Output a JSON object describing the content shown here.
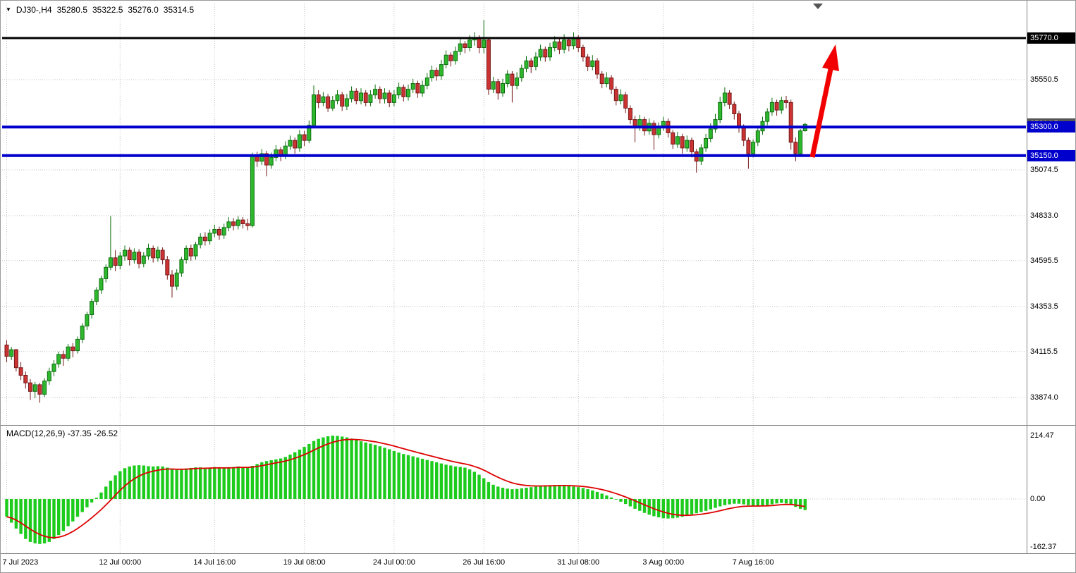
{
  "header": {
    "symbol_period": "DJ30-,H4",
    "open": "35280.5",
    "high": "35322.5",
    "low": "35276.0",
    "close": "35314.5"
  },
  "macd_panel": {
    "label": "MACD(12,26,9) -37.35 -26.52"
  },
  "icons": {
    "one_click_arrow": "▼",
    "chart_shift_marker": "triangle-down"
  },
  "colors": {
    "background": "#ffffff",
    "bull": "#2eb82e",
    "bull_edge": "#0f6e0f",
    "bear": "#cc3333",
    "bear_edge": "#761a1a",
    "grid": "#c4c4c4",
    "level_black": "#000000",
    "level_blue": "#0000cc",
    "macd_hist": "#1dcb1d",
    "macd_signal": "#dd0000",
    "arrow": "#f20000",
    "separator": "#808080",
    "badge_text": "#ffffff",
    "current_tag": "#555555"
  },
  "price_axis": {
    "current_price": {
      "label": "35314.5",
      "value": 35314.5,
      "color": "#555555"
    }
  },
  "chart_data": {
    "type": "candlestick",
    "symbol": "DJ30-",
    "timeframe": "H4",
    "title": "DJ30-,H4 35280.5 35322.5 35276.0 35314.5",
    "ylim": [
      33800,
      35900
    ],
    "x_axis": {
      "ticks": [
        {
          "label": "7 Jul 2023",
          "bar": 0
        },
        {
          "label": "12 Jul 00:00",
          "bar": 24
        },
        {
          "label": "14 Jul 16:00",
          "bar": 44
        },
        {
          "label": "19 Jul 08:00",
          "bar": 63
        },
        {
          "label": "24 Jul 00:00",
          "bar": 82
        },
        {
          "label": "26 Jul 16:00",
          "bar": 101
        },
        {
          "label": "31 Jul 08:00",
          "bar": 121
        },
        {
          "label": "3 Aug 00:00",
          "bar": 139
        },
        {
          "label": "7 Aug 16:00",
          "bar": 158
        }
      ]
    },
    "y_axis": {
      "ticks": [
        {
          "label": "35550.5",
          "value": 35550.5
        },
        {
          "label": "35074.5",
          "value": 35074.5
        },
        {
          "label": "34833.0",
          "value": 34833.0
        },
        {
          "label": "34595.5",
          "value": 34595.5
        },
        {
          "label": "34353.5",
          "value": 34353.5
        },
        {
          "label": "34115.5",
          "value": 34115.5
        },
        {
          "label": "33874.0",
          "value": 33874.0
        }
      ]
    },
    "levels": [
      {
        "label": "35770.0",
        "value": 35770,
        "color": "#000000",
        "width": 3
      },
      {
        "label": "35300.0",
        "value": 35300,
        "color": "#0000cc",
        "width": 4
      },
      {
        "label": "35150.0",
        "value": 35150,
        "color": "#0000cc",
        "width": 4
      }
    ],
    "candles": [
      [
        34150,
        34175,
        34060,
        34090
      ],
      [
        34090,
        34140,
        34070,
        34125
      ],
      [
        34125,
        34130,
        34010,
        34030
      ],
      [
        34030,
        34060,
        33965,
        33990
      ],
      [
        33990,
        34010,
        33920,
        33950
      ],
      [
        33950,
        33970,
        33860,
        33905
      ],
      [
        33905,
        33955,
        33870,
        33940
      ],
      [
        33940,
        33950,
        33845,
        33890
      ],
      [
        33890,
        33975,
        33875,
        33960
      ],
      [
        33960,
        34030,
        33940,
        34010
      ],
      [
        34010,
        34070,
        33985,
        34050
      ],
      [
        34050,
        34115,
        34030,
        34100
      ],
      [
        34100,
        34120,
        34040,
        34080
      ],
      [
        34080,
        34155,
        34065,
        34140
      ],
      [
        34140,
        34160,
        34085,
        34120
      ],
      [
        34120,
        34195,
        34105,
        34180
      ],
      [
        34180,
        34265,
        34160,
        34250
      ],
      [
        34250,
        34325,
        34230,
        34310
      ],
      [
        34310,
        34395,
        34290,
        34380
      ],
      [
        34380,
        34455,
        34360,
        34440
      ],
      [
        34440,
        34515,
        34420,
        34500
      ],
      [
        34500,
        34575,
        34480,
        34560
      ],
      [
        34560,
        34830,
        34545,
        34610
      ],
      [
        34610,
        34650,
        34540,
        34570
      ],
      [
        34570,
        34640,
        34550,
        34620
      ],
      [
        34620,
        34675,
        34595,
        34650
      ],
      [
        34650,
        34665,
        34570,
        34600
      ],
      [
        34600,
        34660,
        34580,
        34640
      ],
      [
        34640,
        34655,
        34555,
        34580
      ],
      [
        34580,
        34640,
        34560,
        34620
      ],
      [
        34620,
        34685,
        34600,
        34660
      ],
      [
        34660,
        34675,
        34585,
        34610
      ],
      [
        34610,
        34670,
        34590,
        34650
      ],
      [
        34650,
        34665,
        34575,
        34600
      ],
      [
        34600,
        34620,
        34495,
        34520
      ],
      [
        34520,
        34545,
        34400,
        34460
      ],
      [
        34460,
        34550,
        34440,
        34530
      ],
      [
        34530,
        34615,
        34510,
        34600
      ],
      [
        34600,
        34675,
        34580,
        34660
      ],
      [
        34660,
        34680,
        34595,
        34620
      ],
      [
        34620,
        34695,
        34600,
        34680
      ],
      [
        34680,
        34740,
        34660,
        34720
      ],
      [
        34720,
        34745,
        34675,
        34700
      ],
      [
        34700,
        34760,
        34680,
        34740
      ],
      [
        34740,
        34785,
        34720,
        34760
      ],
      [
        34760,
        34775,
        34705,
        34730
      ],
      [
        34730,
        34790,
        34710,
        34770
      ],
      [
        34770,
        34825,
        34750,
        34800
      ],
      [
        34800,
        34820,
        34755,
        34780
      ],
      [
        34780,
        34830,
        34760,
        34810
      ],
      [
        34810,
        34825,
        34765,
        34790
      ],
      [
        34790,
        34815,
        34755,
        34780
      ],
      [
        34780,
        35165,
        34770,
        35150
      ],
      [
        35150,
        35170,
        35090,
        35120
      ],
      [
        35120,
        35185,
        35100,
        35160
      ],
      [
        35160,
        35175,
        35040,
        35100
      ],
      [
        35100,
        35165,
        35080,
        35140
      ],
      [
        35140,
        35205,
        35120,
        35180
      ],
      [
        35180,
        35195,
        35120,
        35150
      ],
      [
        35150,
        35225,
        35130,
        35200
      ],
      [
        35200,
        35255,
        35180,
        35230
      ],
      [
        35230,
        35245,
        35160,
        35190
      ],
      [
        35190,
        35285,
        35170,
        35260
      ],
      [
        35260,
        35280,
        35200,
        35230
      ],
      [
        35230,
        35335,
        35215,
        35310
      ],
      [
        35310,
        35520,
        35300,
        35470
      ],
      [
        35470,
        35495,
        35400,
        35430
      ],
      [
        35430,
        35485,
        35410,
        35460
      ],
      [
        35460,
        35475,
        35380,
        35400
      ],
      [
        35400,
        35465,
        35385,
        35440
      ],
      [
        35440,
        35495,
        35420,
        35470
      ],
      [
        35470,
        35485,
        35385,
        35410
      ],
      [
        35410,
        35475,
        35390,
        35450
      ],
      [
        35450,
        35515,
        35430,
        35490
      ],
      [
        35490,
        35505,
        35420,
        35440
      ],
      [
        35440,
        35505,
        35420,
        35480
      ],
      [
        35480,
        35495,
        35410,
        35430
      ],
      [
        35430,
        35495,
        35410,
        35470
      ],
      [
        35470,
        35525,
        35450,
        35500
      ],
      [
        35500,
        35515,
        35425,
        35450
      ],
      [
        35450,
        35505,
        35425,
        35480
      ],
      [
        35480,
        35495,
        35405,
        35430
      ],
      [
        35430,
        35495,
        35410,
        35470
      ],
      [
        35470,
        35535,
        35450,
        35510
      ],
      [
        35510,
        35525,
        35435,
        35460
      ],
      [
        35460,
        35525,
        35440,
        35500
      ],
      [
        35500,
        35555,
        35480,
        35530
      ],
      [
        35530,
        35545,
        35455,
        35480
      ],
      [
        35480,
        35545,
        35460,
        35520
      ],
      [
        35520,
        35585,
        35500,
        35560
      ],
      [
        35560,
        35625,
        35540,
        35600
      ],
      [
        35600,
        35615,
        35545,
        35570
      ],
      [
        35570,
        35655,
        35550,
        35630
      ],
      [
        35630,
        35705,
        35610,
        35680
      ],
      [
        35680,
        35695,
        35620,
        35650
      ],
      [
        35650,
        35725,
        35630,
        35700
      ],
      [
        35700,
        35765,
        35680,
        35740
      ],
      [
        35740,
        35755,
        35690,
        35720
      ],
      [
        35720,
        35785,
        35700,
        35760
      ],
      [
        35760,
        35800,
        35730,
        35770
      ],
      [
        35770,
        35785,
        35690,
        35720
      ],
      [
        35720,
        35865,
        35690,
        35760
      ],
      [
        35760,
        35775,
        35470,
        35500
      ],
      [
        35500,
        35565,
        35480,
        35540
      ],
      [
        35540,
        35555,
        35445,
        35480
      ],
      [
        35480,
        35555,
        35460,
        35530
      ],
      [
        35530,
        35600,
        35510,
        35580
      ],
      [
        35580,
        35595,
        35430,
        35520
      ],
      [
        35520,
        35590,
        35500,
        35560
      ],
      [
        35560,
        35630,
        35540,
        35610
      ],
      [
        35610,
        35675,
        35590,
        35650
      ],
      [
        35650,
        35665,
        35585,
        35620
      ],
      [
        35620,
        35695,
        35600,
        35670
      ],
      [
        35670,
        35735,
        35650,
        35710
      ],
      [
        35710,
        35725,
        35645,
        35670
      ],
      [
        35670,
        35745,
        35650,
        35720
      ],
      [
        35720,
        35780,
        35700,
        35750
      ],
      [
        35750,
        35765,
        35685,
        35710
      ],
      [
        35710,
        35790,
        35690,
        35760
      ],
      [
        35760,
        35775,
        35700,
        35730
      ],
      [
        35730,
        35800,
        35710,
        35770
      ],
      [
        35770,
        35785,
        35695,
        35720
      ],
      [
        35720,
        35735,
        35645,
        35670
      ],
      [
        35670,
        35685,
        35595,
        35620
      ],
      [
        35620,
        35680,
        35600,
        35650
      ],
      [
        35650,
        35665,
        35555,
        35580
      ],
      [
        35580,
        35595,
        35505,
        35530
      ],
      [
        35530,
        35590,
        35510,
        35560
      ],
      [
        35560,
        35575,
        35475,
        35500
      ],
      [
        35500,
        35515,
        35415,
        35440
      ],
      [
        35440,
        35500,
        35420,
        35470
      ],
      [
        35470,
        35485,
        35375,
        35400
      ],
      [
        35400,
        35415,
        35315,
        35340
      ],
      [
        35340,
        35360,
        35220,
        35300
      ],
      [
        35300,
        35365,
        35280,
        35340
      ],
      [
        35340,
        35355,
        35255,
        35280
      ],
      [
        35280,
        35345,
        35260,
        35320
      ],
      [
        35320,
        35335,
        35180,
        35260
      ],
      [
        35260,
        35325,
        35240,
        35300
      ],
      [
        35300,
        35355,
        35280,
        35330
      ],
      [
        35330,
        35345,
        35245,
        35270
      ],
      [
        35270,
        35285,
        35185,
        35210
      ],
      [
        35210,
        35275,
        35190,
        35250
      ],
      [
        35250,
        35265,
        35160,
        35190
      ],
      [
        35190,
        35255,
        35170,
        35230
      ],
      [
        35230,
        35245,
        35140,
        35170
      ],
      [
        35170,
        35185,
        35060,
        35120
      ],
      [
        35120,
        35210,
        35100,
        35190
      ],
      [
        35190,
        35265,
        35170,
        35240
      ],
      [
        35240,
        35320,
        35220,
        35290
      ],
      [
        35290,
        35370,
        35270,
        35340
      ],
      [
        35340,
        35460,
        35320,
        35430
      ],
      [
        35430,
        35510,
        35410,
        35480
      ],
      [
        35480,
        35495,
        35395,
        35420
      ],
      [
        35420,
        35435,
        35340,
        35370
      ],
      [
        35370,
        35385,
        35270,
        35300
      ],
      [
        35300,
        35315,
        35200,
        35230
      ],
      [
        35230,
        35245,
        35080,
        35160
      ],
      [
        35160,
        35235,
        35140,
        35220
      ],
      [
        35220,
        35300,
        35200,
        35280
      ],
      [
        35280,
        35355,
        35260,
        35330
      ],
      [
        35330,
        35400,
        35310,
        35380
      ],
      [
        35380,
        35455,
        35360,
        35430
      ],
      [
        35430,
        35445,
        35360,
        35390
      ],
      [
        35390,
        35460,
        35370,
        35440
      ],
      [
        35440,
        35465,
        35400,
        35430
      ],
      [
        35430,
        35445,
        35180,
        35220
      ],
      [
        35220,
        35245,
        35120,
        35160
      ],
      [
        35160,
        35290,
        35150,
        35280
      ],
      [
        35280.5,
        35322.5,
        35276.0,
        35314.5
      ]
    ],
    "indicator": {
      "type": "MACD",
      "params": "12,26,9",
      "label": "MACD(12,26,9) -37.35 -26.52",
      "last_macd": -37.35,
      "last_signal": -26.52,
      "signal_period": 9,
      "ylim": [
        -162.37,
        214.47
      ],
      "axis_ticks": [
        {
          "label": "214.47",
          "value": 214.47
        },
        {
          "label": "0.00",
          "value": 0
        },
        {
          "label": "-162.37",
          "value": -162.37
        }
      ],
      "values": [
        -60,
        -80,
        -100,
        -118,
        -135,
        -145,
        -150,
        -152,
        -150,
        -145,
        -135,
        -122,
        -108,
        -92,
        -76,
        -60,
        -44,
        -28,
        -12,
        4,
        22,
        42,
        62,
        80,
        94,
        104,
        110,
        113,
        114,
        113,
        111,
        110,
        111,
        110,
        106,
        101,
        98,
        100,
        103,
        105,
        107,
        107,
        105,
        106,
        108,
        106,
        104,
        106,
        108,
        110,
        108,
        106,
        112,
        118,
        124,
        128,
        131,
        134,
        137,
        142,
        150,
        158,
        167,
        176,
        186,
        196,
        203,
        208,
        212,
        214,
        213,
        211,
        208,
        204,
        199,
        195,
        191,
        187,
        183,
        178,
        173,
        168,
        162,
        157,
        152,
        148,
        144,
        140,
        136,
        132,
        128,
        124,
        120,
        116,
        113,
        110,
        108,
        106,
        100,
        92,
        82,
        70,
        57,
        48,
        42,
        38,
        35,
        33,
        34,
        36,
        38,
        40,
        42,
        44,
        45,
        46,
        47,
        47,
        46,
        44,
        42,
        40,
        37,
        33,
        29,
        24,
        18,
        12,
        5,
        -2,
        -9,
        -17,
        -25,
        -33,
        -40,
        -47,
        -53,
        -58,
        -62,
        -65,
        -66,
        -65,
        -63,
        -60,
        -56,
        -52,
        -48,
        -44,
        -40,
        -35,
        -30,
        -25,
        -21,
        -18,
        -16,
        -16,
        -18,
        -21,
        -23,
        -24,
        -23,
        -21,
        -18,
        -15,
        -13,
        -15,
        -20,
        -27,
        -33,
        -37.35
      ]
    }
  }
}
